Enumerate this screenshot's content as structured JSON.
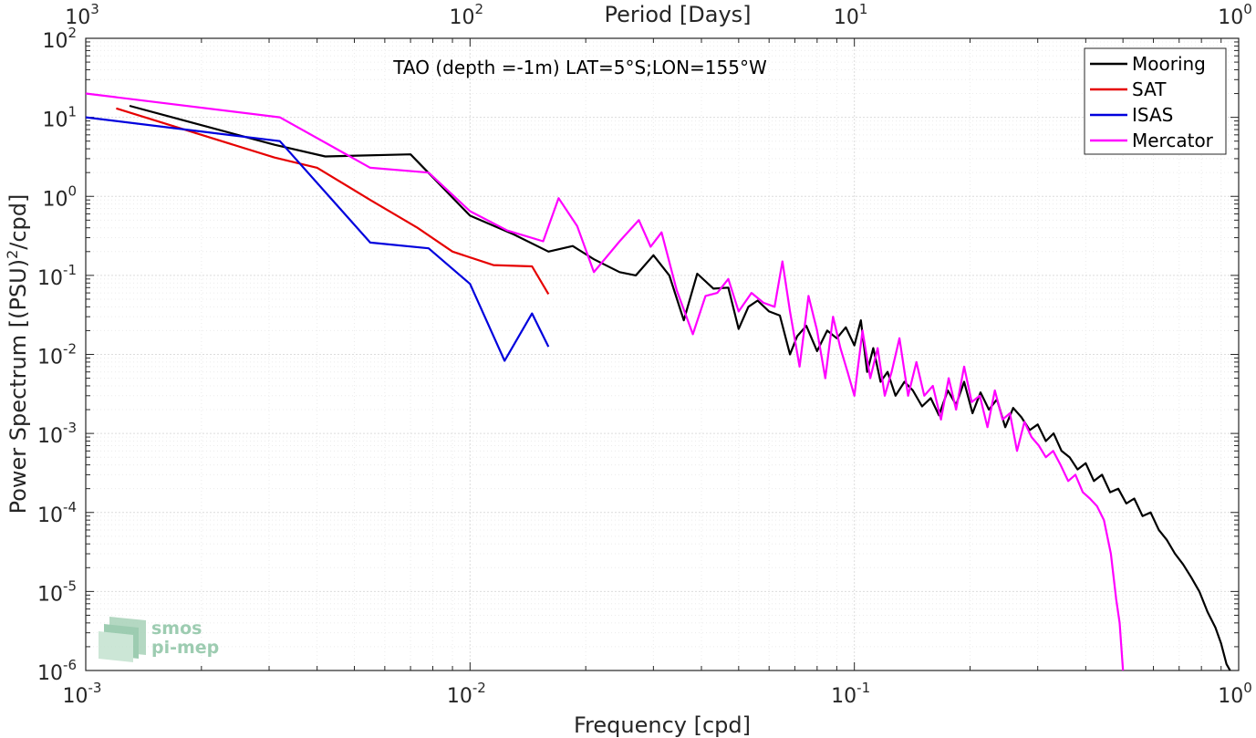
{
  "chart_data": {
    "type": "line",
    "title": "TAO (depth =-1m) LAT=5°S;LON=155°W",
    "xlabel": "Frequency [cpd]",
    "ylabel": "Power Spectrum [(PSU)",
    "ylabel_sup": "2",
    "ylabel_tail": "/cpd]",
    "top_xlabel": "Period [Days]",
    "xscale": "log",
    "yscale": "log",
    "xlim": [
      0.001,
      1
    ],
    "ylim": [
      1e-06,
      100
    ],
    "grid": true,
    "legend_position": "top-right",
    "x_ticks": [
      {
        "base": "10",
        "exp": "-3"
      },
      {
        "base": "10",
        "exp": "-2"
      },
      {
        "base": "10",
        "exp": "-1"
      },
      {
        "base": "10",
        "exp": "0"
      }
    ],
    "top_ticks": [
      {
        "base": "10",
        "exp": "3"
      },
      {
        "base": "10",
        "exp": "2"
      },
      {
        "base": "10",
        "exp": "1"
      },
      {
        "base": "10",
        "exp": "0"
      }
    ],
    "y_ticks": [
      {
        "base": "10",
        "exp": "2"
      },
      {
        "base": "10",
        "exp": "1"
      },
      {
        "base": "10",
        "exp": "0"
      },
      {
        "base": "10",
        "exp": "-1"
      },
      {
        "base": "10",
        "exp": "-2"
      },
      {
        "base": "10",
        "exp": "-3"
      },
      {
        "base": "10",
        "exp": "-4"
      },
      {
        "base": "10",
        "exp": "-5"
      },
      {
        "base": "10",
        "exp": "-6"
      }
    ],
    "series": [
      {
        "name": "Mooring",
        "color": "#000000",
        "points": [
          [
            0.0013,
            14
          ],
          [
            0.0031,
            4.5
          ],
          [
            0.0042,
            3.2
          ],
          [
            0.007,
            3.4
          ],
          [
            0.01,
            0.57
          ],
          [
            0.013,
            0.33
          ],
          [
            0.016,
            0.2
          ],
          [
            0.0185,
            0.235
          ],
          [
            0.021,
            0.16
          ],
          [
            0.0245,
            0.11
          ],
          [
            0.027,
            0.1
          ],
          [
            0.03,
            0.18
          ],
          [
            0.033,
            0.1
          ],
          [
            0.036,
            0.027
          ],
          [
            0.039,
            0.105
          ],
          [
            0.043,
            0.068
          ],
          [
            0.047,
            0.07
          ],
          [
            0.05,
            0.021
          ],
          [
            0.053,
            0.04
          ],
          [
            0.056,
            0.048
          ],
          [
            0.06,
            0.035
          ],
          [
            0.064,
            0.031
          ],
          [
            0.068,
            0.01
          ],
          [
            0.071,
            0.017
          ],
          [
            0.075,
            0.023
          ],
          [
            0.08,
            0.011
          ],
          [
            0.085,
            0.02
          ],
          [
            0.09,
            0.016
          ],
          [
            0.095,
            0.022
          ],
          [
            0.1,
            0.013
          ],
          [
            0.104,
            0.027
          ],
          [
            0.108,
            0.006
          ],
          [
            0.112,
            0.012
          ],
          [
            0.117,
            0.0045
          ],
          [
            0.122,
            0.006
          ],
          [
            0.128,
            0.003
          ],
          [
            0.135,
            0.0045
          ],
          [
            0.142,
            0.0035
          ],
          [
            0.15,
            0.0022
          ],
          [
            0.158,
            0.0028
          ],
          [
            0.166,
            0.0017
          ],
          [
            0.175,
            0.0035
          ],
          [
            0.184,
            0.0023
          ],
          [
            0.193,
            0.0045
          ],
          [
            0.203,
            0.0018
          ],
          [
            0.213,
            0.0033
          ],
          [
            0.224,
            0.002
          ],
          [
            0.235,
            0.0027
          ],
          [
            0.247,
            0.0012
          ],
          [
            0.259,
            0.0021
          ],
          [
            0.272,
            0.0016
          ],
          [
            0.286,
            0.0011
          ],
          [
            0.3,
            0.0013
          ],
          [
            0.315,
            0.0008
          ],
          [
            0.33,
            0.001
          ],
          [
            0.346,
            0.0006
          ],
          [
            0.363,
            0.0005
          ],
          [
            0.381,
            0.00035
          ],
          [
            0.4,
            0.00042
          ],
          [
            0.42,
            0.00025
          ],
          [
            0.441,
            0.0003
          ],
          [
            0.463,
            0.00018
          ],
          [
            0.486,
            0.0002
          ],
          [
            0.51,
            0.00013
          ],
          [
            0.535,
            0.00015
          ],
          [
            0.562,
            9e-05
          ],
          [
            0.59,
            0.0001
          ],
          [
            0.62,
            6e-05
          ],
          [
            0.65,
            4.5e-05
          ],
          [
            0.683,
            3e-05
          ],
          [
            0.717,
            2.2e-05
          ],
          [
            0.753,
            1.5e-05
          ],
          [
            0.79,
            1e-05
          ],
          [
            0.83,
            5.5e-06
          ],
          [
            0.87,
            3.5e-06
          ],
          [
            0.9,
            2.2e-06
          ],
          [
            0.93,
            1.2e-06
          ],
          [
            0.95,
            1e-06
          ]
        ]
      },
      {
        "name": "SAT",
        "color": "#e60000",
        "points": [
          [
            0.0012,
            13
          ],
          [
            0.002,
            6.0
          ],
          [
            0.0031,
            3.1
          ],
          [
            0.004,
            2.3
          ],
          [
            0.0055,
            0.9
          ],
          [
            0.0073,
            0.4
          ],
          [
            0.009,
            0.2
          ],
          [
            0.0115,
            0.135
          ],
          [
            0.0145,
            0.13
          ],
          [
            0.016,
            0.058
          ]
        ]
      },
      {
        "name": "ISAS",
        "color": "#0000dd",
        "points": [
          [
            0.001,
            10
          ],
          [
            0.0032,
            5.0
          ],
          [
            0.0055,
            0.26
          ],
          [
            0.0078,
            0.22
          ],
          [
            0.01,
            0.078
          ],
          [
            0.0123,
            0.0083
          ],
          [
            0.0145,
            0.033
          ],
          [
            0.016,
            0.0125
          ]
        ]
      },
      {
        "name": "Mercator",
        "color": "#ff00ff",
        "points": [
          [
            0.001,
            20
          ],
          [
            0.0032,
            10
          ],
          [
            0.0055,
            2.3
          ],
          [
            0.0078,
            2.0
          ],
          [
            0.01,
            0.65
          ],
          [
            0.0125,
            0.37
          ],
          [
            0.0155,
            0.27
          ],
          [
            0.017,
            0.95
          ],
          [
            0.019,
            0.42
          ],
          [
            0.021,
            0.11
          ],
          [
            0.0245,
            0.27
          ],
          [
            0.0275,
            0.5
          ],
          [
            0.0295,
            0.23
          ],
          [
            0.0315,
            0.35
          ],
          [
            0.0345,
            0.065
          ],
          [
            0.038,
            0.018
          ],
          [
            0.041,
            0.055
          ],
          [
            0.044,
            0.06
          ],
          [
            0.047,
            0.09
          ],
          [
            0.05,
            0.035
          ],
          [
            0.054,
            0.06
          ],
          [
            0.058,
            0.045
          ],
          [
            0.062,
            0.04
          ],
          [
            0.065,
            0.15
          ],
          [
            0.068,
            0.035
          ],
          [
            0.072,
            0.007
          ],
          [
            0.076,
            0.055
          ],
          [
            0.08,
            0.02
          ],
          [
            0.084,
            0.005
          ],
          [
            0.088,
            0.03
          ],
          [
            0.092,
            0.012
          ],
          [
            0.096,
            0.006
          ],
          [
            0.1,
            0.003
          ],
          [
            0.105,
            0.02
          ],
          [
            0.11,
            0.005
          ],
          [
            0.115,
            0.012
          ],
          [
            0.12,
            0.003
          ],
          [
            0.125,
            0.006
          ],
          [
            0.131,
            0.016
          ],
          [
            0.138,
            0.003
          ],
          [
            0.145,
            0.008
          ],
          [
            0.152,
            0.003
          ],
          [
            0.16,
            0.004
          ],
          [
            0.168,
            0.0015
          ],
          [
            0.176,
            0.005
          ],
          [
            0.184,
            0.002
          ],
          [
            0.193,
            0.007
          ],
          [
            0.202,
            0.0025
          ],
          [
            0.212,
            0.003
          ],
          [
            0.222,
            0.0012
          ],
          [
            0.232,
            0.0035
          ],
          [
            0.243,
            0.0015
          ],
          [
            0.254,
            0.0018
          ],
          [
            0.265,
            0.0006
          ],
          [
            0.277,
            0.0014
          ],
          [
            0.289,
            0.0009
          ],
          [
            0.302,
            0.0007
          ],
          [
            0.315,
            0.0005
          ],
          [
            0.329,
            0.0006
          ],
          [
            0.344,
            0.0004
          ],
          [
            0.36,
            0.00025
          ],
          [
            0.376,
            0.0003
          ],
          [
            0.393,
            0.00018
          ],
          [
            0.41,
            0.00015
          ],
          [
            0.428,
            0.00012
          ],
          [
            0.446,
            8e-05
          ],
          [
            0.465,
            3e-05
          ],
          [
            0.48,
            8e-06
          ],
          [
            0.49,
            4e-06
          ],
          [
            0.5,
            1e-06
          ]
        ]
      }
    ]
  }
}
